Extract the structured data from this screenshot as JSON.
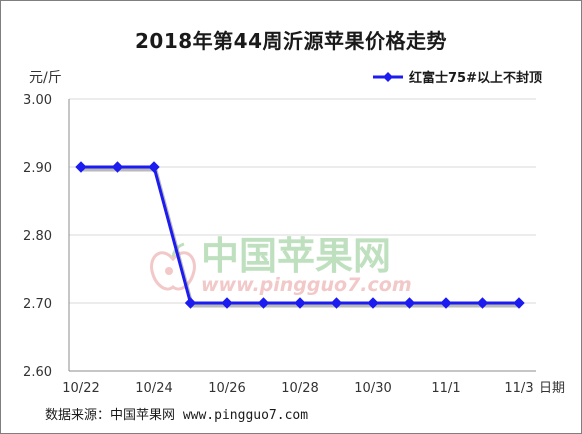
{
  "chart_data": {
    "type": "line",
    "title": "2018年第44周沂源苹果价格走势",
    "ylabel": "元/斤",
    "xlabel": "日期",
    "ylim": [
      2.6,
      3.0
    ],
    "yticks": [
      "3.00",
      "2.90",
      "2.80",
      "2.70",
      "2.60"
    ],
    "x": [
      "10/22",
      "10/23",
      "10/24",
      "10/25",
      "10/26",
      "10/27",
      "10/28",
      "10/29",
      "10/30",
      "10/31",
      "11/1",
      "11/2",
      "11/3"
    ],
    "xtick_labels": [
      "10/22",
      "10/24",
      "10/26",
      "10/28",
      "10/30",
      "11/1",
      "11/3"
    ],
    "series": [
      {
        "name": "红富士75#以上不封顶",
        "color": "#1c1cf0",
        "values": [
          2.9,
          2.9,
          2.9,
          2.7,
          2.7,
          2.7,
          2.7,
          2.7,
          2.7,
          2.7,
          2.7,
          2.7,
          2.7
        ]
      }
    ],
    "grid": "horizontal",
    "legend": "top-right"
  },
  "watermark": {
    "name": "中国苹果网",
    "url": "www.pingguo7.com"
  },
  "source": "数据来源：中国苹果网 www.pingguo7.com"
}
